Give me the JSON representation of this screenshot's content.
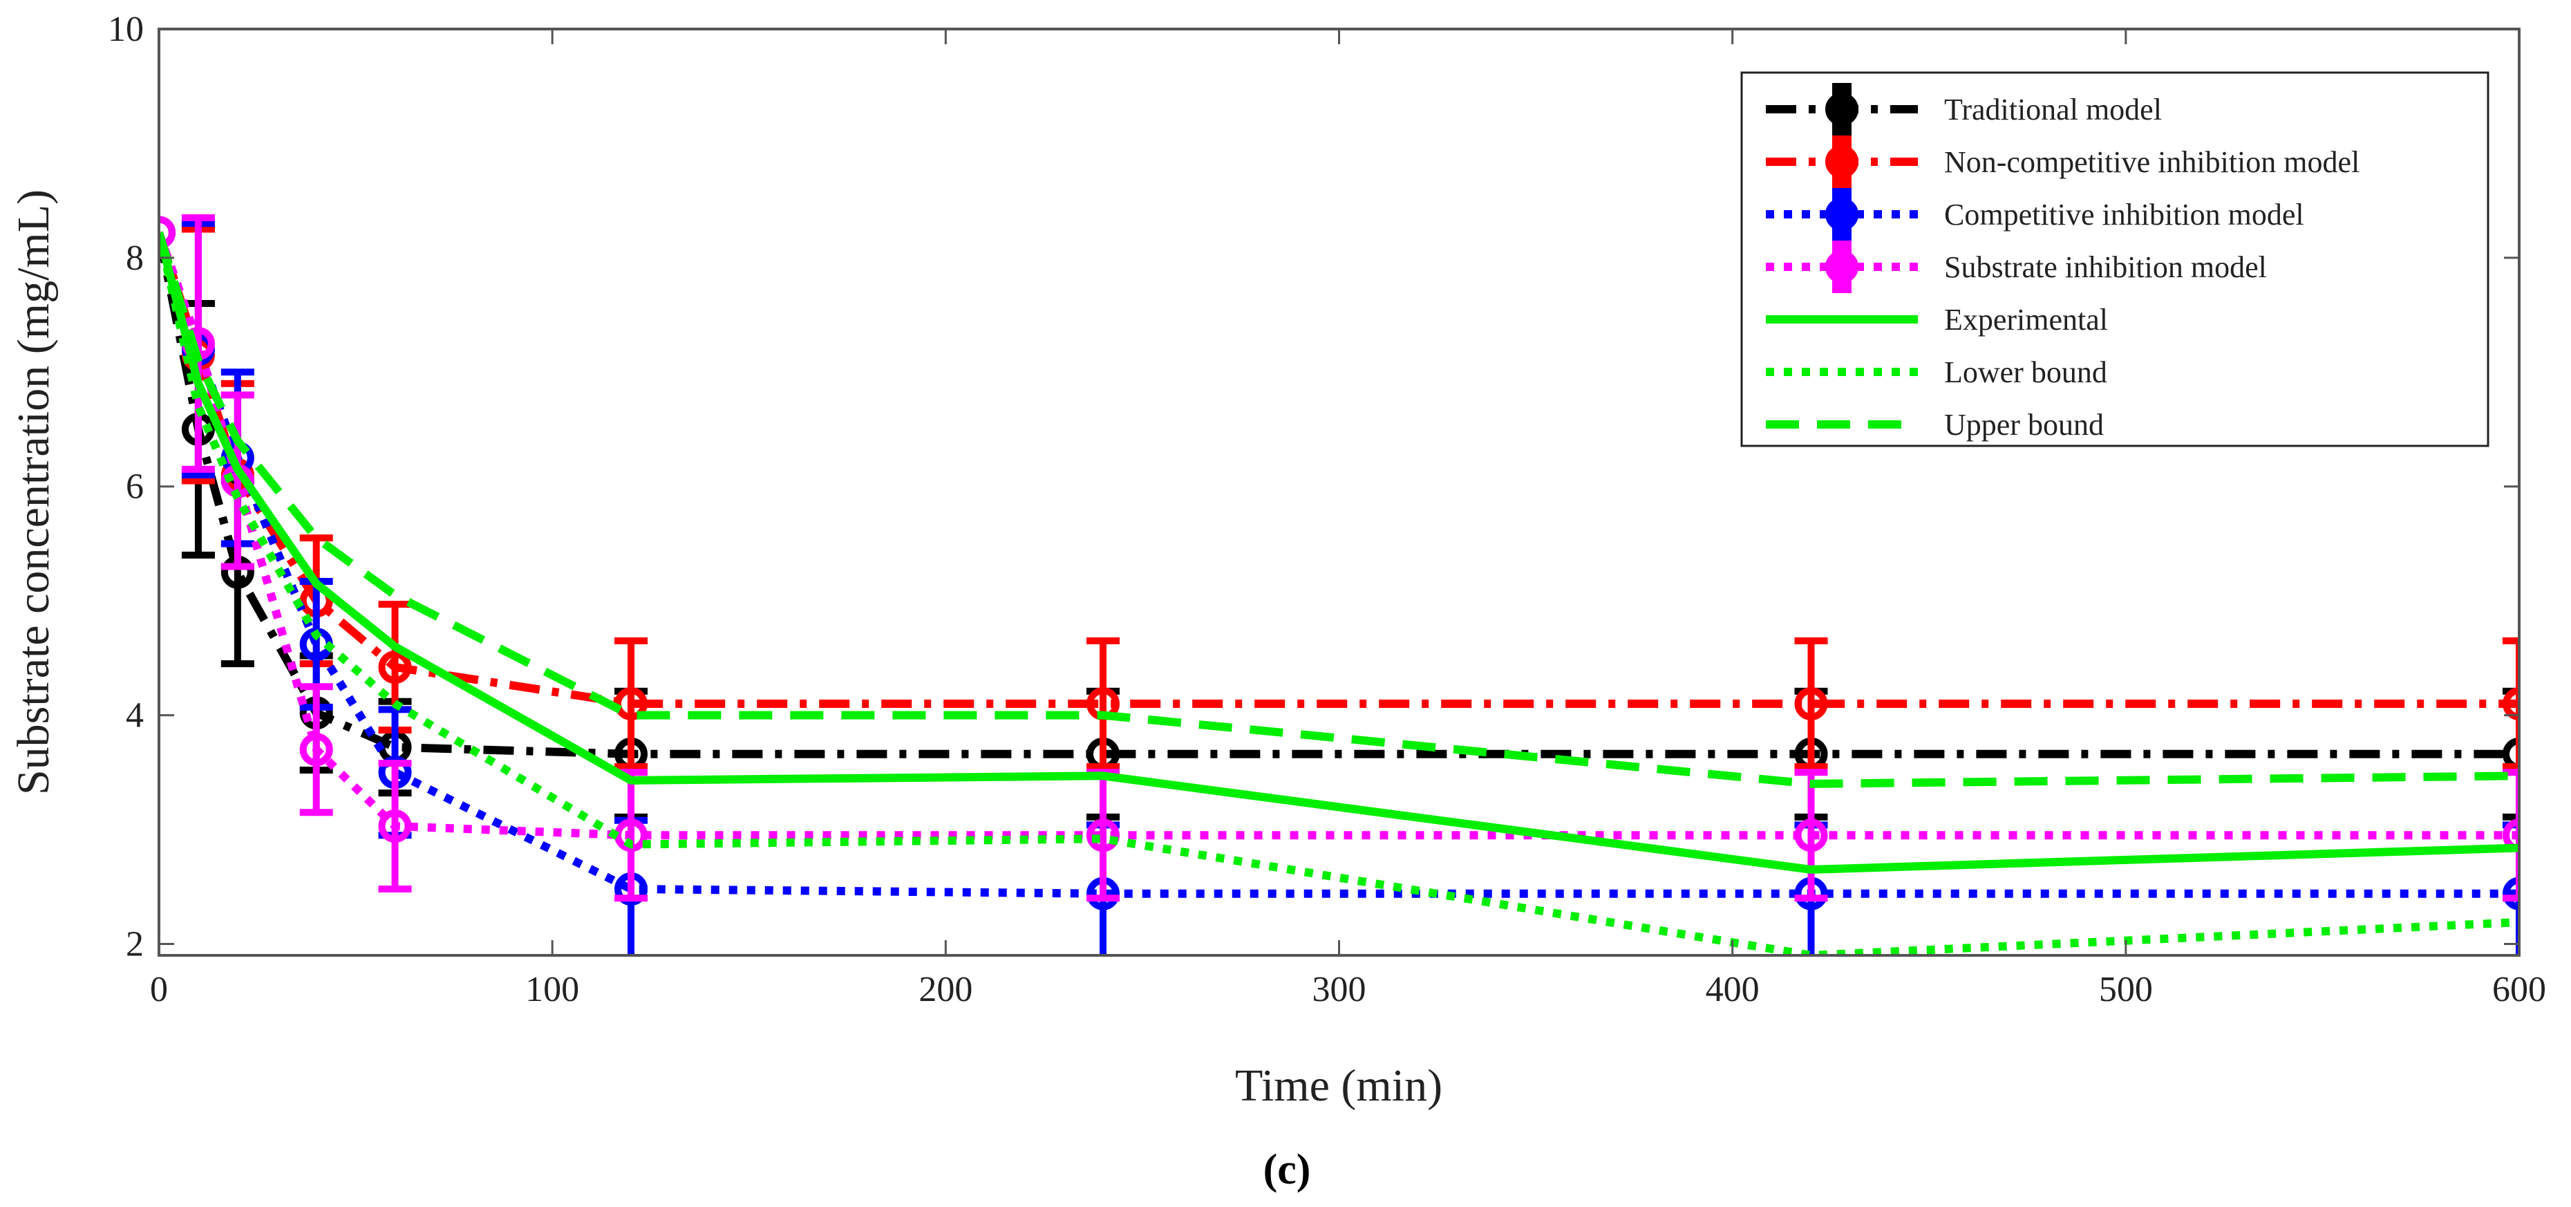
{
  "chart_data": {
    "type": "line",
    "title": "",
    "caption": "(c)",
    "xlabel": "Time (min)",
    "ylabel": "Substrate concentration (mg/mL)",
    "xlim": [
      0,
      600
    ],
    "ylim": [
      1.9,
      10
    ],
    "xticks": [
      0,
      100,
      200,
      300,
      400,
      500,
      600
    ],
    "yticks": [
      2,
      4,
      6,
      8,
      10
    ],
    "grid": false,
    "legend_position": "top-right",
    "series": [
      {
        "name": "Traditional model",
        "color": "#000000",
        "dash": "dashdot",
        "marker": "circle",
        "x": [
          0,
          10,
          20,
          40,
          60,
          120,
          240,
          420,
          600
        ],
        "y": [
          8.22,
          6.5,
          5.25,
          4.02,
          3.72,
          3.66,
          3.66,
          3.66,
          3.66
        ],
        "err": [
          0,
          1.1,
          0.8,
          0.5,
          0.4,
          0.55,
          0.55,
          0.55,
          0.55
        ]
      },
      {
        "name": "Non-competitive inhibition model",
        "color": "#ff0000",
        "dash": "dashdot",
        "marker": "circle",
        "x": [
          0,
          10,
          20,
          40,
          60,
          120,
          240,
          420,
          600
        ],
        "y": [
          8.22,
          7.15,
          6.1,
          5.0,
          4.42,
          4.1,
          4.1,
          4.1,
          4.1
        ],
        "err": [
          0,
          1.1,
          0.8,
          0.55,
          0.55,
          0.55,
          0.55,
          0.55,
          0.55
        ]
      },
      {
        "name": "Competitive inhibition model",
        "color": "#0000ff",
        "dash": "dotted",
        "marker": "circle",
        "x": [
          0,
          10,
          20,
          40,
          60,
          120,
          240,
          420,
          600
        ],
        "y": [
          8.22,
          7.2,
          6.25,
          4.62,
          3.5,
          2.48,
          2.44,
          2.44,
          2.44
        ],
        "err": [
          0,
          1.1,
          0.75,
          0.55,
          0.55,
          0.6,
          0.6,
          0.6,
          0.6
        ]
      },
      {
        "name": "Substrate inhibition model",
        "color": "#ff00ff",
        "dash": "dotted",
        "marker": "circle",
        "x": [
          0,
          10,
          20,
          40,
          60,
          120,
          240,
          420,
          600
        ],
        "y": [
          8.22,
          7.25,
          6.05,
          3.7,
          3.03,
          2.95,
          2.95,
          2.95,
          2.95
        ],
        "err": [
          0,
          1.1,
          0.75,
          0.55,
          0.55,
          0.55,
          0.55,
          0.55,
          0.55
        ]
      },
      {
        "name": "Experimental",
        "color": "#00ee00",
        "dash": "solid",
        "marker": "none",
        "x": [
          0,
          10,
          20,
          40,
          60,
          120,
          240,
          420,
          600
        ],
        "y": [
          8.22,
          6.9,
          6.15,
          5.15,
          4.6,
          3.43,
          3.47,
          2.65,
          2.84
        ],
        "err": []
      },
      {
        "name": "Lower bound",
        "color": "#00ee00",
        "dash": "dotted",
        "marker": "none",
        "x": [
          0,
          10,
          20,
          40,
          60,
          120,
          240,
          420,
          600
        ],
        "y": [
          8.22,
          6.7,
          5.9,
          4.7,
          4.1,
          2.87,
          2.92,
          1.9,
          2.19
        ],
        "err": []
      },
      {
        "name": "Upper bound",
        "color": "#00ee00",
        "dash": "dashed",
        "marker": "none",
        "x": [
          0,
          10,
          20,
          40,
          60,
          120,
          240,
          420,
          600
        ],
        "y": [
          8.22,
          7.1,
          6.4,
          5.55,
          5.05,
          4.0,
          4.0,
          3.4,
          3.47
        ],
        "err": []
      }
    ]
  }
}
